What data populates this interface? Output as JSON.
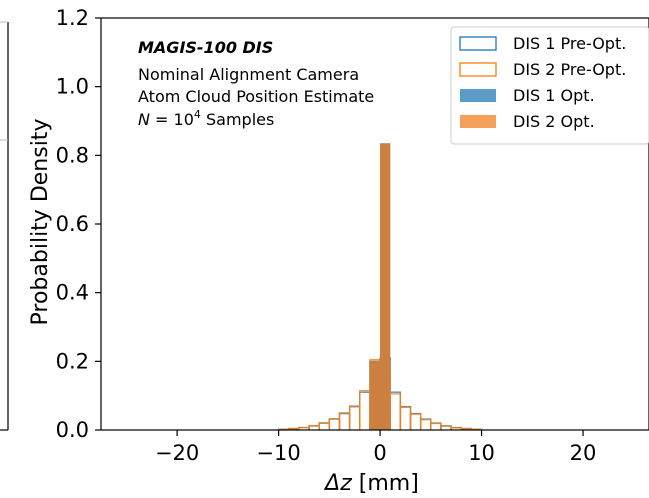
{
  "chart_data": {
    "type": "histogram",
    "xlabel_symbol": "Δz",
    "xlabel_unit": " [mm]",
    "xlabel": "Δz [mm]",
    "ylabel": "Probability Density",
    "xlim": [
      -27.5,
      26.5
    ],
    "ylim": [
      0,
      1.2
    ],
    "xticks": [
      -20,
      -10,
      0,
      10,
      20
    ],
    "xtick_labels": [
      "−20",
      "−10",
      "0",
      "10",
      "20"
    ],
    "yticks": [
      0.0,
      0.2,
      0.4,
      0.6,
      0.8,
      1.0,
      1.2
    ],
    "ytick_labels": [
      "0.0",
      "0.2",
      "0.4",
      "0.6",
      "0.8",
      "1.0",
      "1.2"
    ],
    "annotation": {
      "title": "MAGIS-100 DIS",
      "line1": "Nominal Alignment Camera",
      "line2": "Atom Cloud Position Estimate",
      "line3_italic": "N",
      "line3_eq": " = 10",
      "line3_sup": "4",
      "line3_rest": " Samples"
    },
    "legend_position": "top-right",
    "colors": {
      "dis1": "#1f77b4",
      "dis2": "#ff7f0e",
      "dis1_fill": "#5b9bc7",
      "dis2_fill": "#f5a05a",
      "overlap": "#cd7f3f"
    },
    "bin_width": 1.0,
    "series": [
      {
        "name": "DIS 1 Pre-Opt.",
        "style": "step",
        "color": "#1f77b4",
        "x": [
          -10,
          -9,
          -8,
          -7,
          -6,
          -5,
          -4,
          -3,
          -2,
          -1,
          0,
          1,
          2,
          3,
          4,
          5,
          6,
          7,
          8,
          9
        ],
        "values": [
          0.002,
          0.004,
          0.007,
          0.012,
          0.02,
          0.032,
          0.048,
          0.068,
          0.11,
          0.2,
          0.21,
          0.11,
          0.068,
          0.048,
          0.032,
          0.02,
          0.012,
          0.007,
          0.004,
          0.002
        ]
      },
      {
        "name": "DIS 2 Pre-Opt.",
        "style": "step",
        "color": "#ff7f0e",
        "x": [
          -10,
          -9,
          -8,
          -7,
          -6,
          -5,
          -4,
          -3,
          -2,
          -1,
          0,
          1,
          2,
          3,
          4,
          5,
          6,
          7,
          8,
          9
        ],
        "values": [
          0.002,
          0.004,
          0.007,
          0.013,
          0.021,
          0.033,
          0.05,
          0.07,
          0.115,
          0.205,
          0.2,
          0.105,
          0.066,
          0.046,
          0.03,
          0.019,
          0.011,
          0.006,
          0.004,
          0.002
        ]
      },
      {
        "name": "DIS 1 Opt.",
        "style": "filled",
        "color": "#5b9bc7",
        "x": [
          -1,
          0
        ],
        "values": [
          0.2,
          0.835
        ]
      },
      {
        "name": "DIS 2 Opt.",
        "style": "filled",
        "color": "#f5a05a",
        "x": [
          -1,
          0
        ],
        "values": [
          0.2,
          0.835
        ]
      }
    ]
  }
}
